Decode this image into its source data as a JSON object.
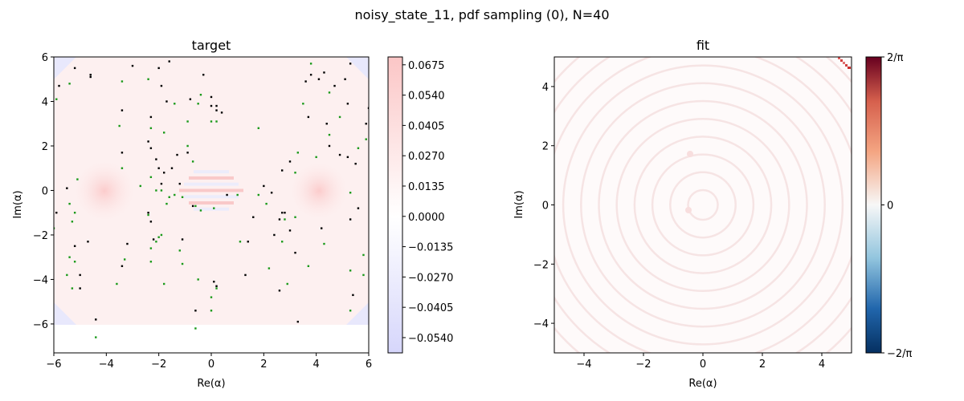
{
  "figure": {
    "suptitle": "noisy_state_11, pdf sampling (0), N=40"
  },
  "chart_data": [
    {
      "type": "heatmap",
      "title": "target",
      "xlabel": "Re(α)",
      "ylabel": "Im(α)",
      "xlim": [
        -6,
        6
      ],
      "ylim": [
        -7.3,
        6
      ],
      "xticks": [
        "−6",
        "−4",
        "−2",
        "0",
        "2",
        "4",
        "6"
      ],
      "yticks": [
        "−6",
        "−4",
        "−2",
        "0",
        "2",
        "4",
        "6"
      ],
      "colorbar": {
        "range": [
          -0.0608,
          0.071
        ],
        "ticks": [
          0.0675,
          0.054,
          0.0405,
          0.027,
          0.0135,
          0.0,
          -0.0135,
          -0.027,
          -0.0405,
          -0.054
        ],
        "tick_labels": [
          "0.0675",
          "0.0540",
          "0.0405",
          "0.0270",
          "0.0135",
          "0.0000",
          "−0.0135",
          "−0.0270",
          "−0.0405",
          "−0.0540"
        ],
        "colors": {
          "low": "#d6d6fb",
          "mid": "#ffffff",
          "high": "#fbc6c6"
        }
      },
      "features": {
        "lobes": [
          {
            "x": -4.2,
            "y": 0.0
          },
          {
            "x": 4.1,
            "y": 0.0
          }
        ],
        "fringe_center": {
          "x": 0.0,
          "y": 0.0
        }
      },
      "sample_points": [
        {
          "name": "black-samples",
          "color": "#000000",
          "points": [
            [
              -5.8,
              4.7
            ],
            [
              -5.2,
              5.5
            ],
            [
              -4.6,
              5.2
            ],
            [
              -4.6,
              5.1
            ],
            [
              -3.0,
              5.6
            ],
            [
              -2.0,
              5.5
            ],
            [
              -1.6,
              5.8
            ],
            [
              -1.9,
              4.7
            ],
            [
              -1.7,
              4.0
            ],
            [
              -0.8,
              4.1
            ],
            [
              -0.3,
              5.2
            ],
            [
              0.0,
              4.2
            ],
            [
              0.0,
              3.8
            ],
            [
              0.2,
              3.8
            ],
            [
              0.2,
              3.6
            ],
            [
              0.4,
              3.5
            ],
            [
              -3.4,
              3.6
            ],
            [
              -2.3,
              3.3
            ],
            [
              -3.4,
              1.7
            ],
            [
              -2.4,
              2.2
            ],
            [
              -2.3,
              1.9
            ],
            [
              -2.1,
              1.4
            ],
            [
              -2.0,
              1.0
            ],
            [
              -1.9,
              0.3
            ],
            [
              -1.8,
              0.8
            ],
            [
              -1.5,
              1.0
            ],
            [
              -1.3,
              1.6
            ],
            [
              -1.2,
              0.3
            ],
            [
              -0.9,
              1.7
            ],
            [
              -5.5,
              0.1
            ],
            [
              -5.9,
              -1.0
            ],
            [
              -3.4,
              -3.4
            ],
            [
              -5.2,
              -2.5
            ],
            [
              -4.7,
              -2.3
            ],
            [
              -5.0,
              -4.4
            ],
            [
              -5.0,
              -3.8
            ],
            [
              -3.2,
              -2.4
            ],
            [
              -2.4,
              -1.0
            ],
            [
              -2.3,
              -1.4
            ],
            [
              -2.2,
              -2.2
            ],
            [
              -1.1,
              -2.2
            ],
            [
              -0.6,
              -5.4
            ],
            [
              0.1,
              -4.1
            ],
            [
              0.2,
              -4.3
            ],
            [
              -0.7,
              -0.7
            ],
            [
              0.6,
              -0.2
            ],
            [
              1.6,
              -1.2
            ],
            [
              1.4,
              -2.3
            ],
            [
              2.0,
              0.2
            ],
            [
              2.3,
              -0.1
            ],
            [
              2.6,
              -1.3
            ],
            [
              2.4,
              -2.0
            ],
            [
              2.7,
              -1.0
            ],
            [
              2.8,
              -1.0
            ],
            [
              3.0,
              -1.8
            ],
            [
              2.6,
              -4.5
            ],
            [
              3.2,
              -2.8
            ],
            [
              3.3,
              -5.9
            ],
            [
              3.0,
              1.3
            ],
            [
              2.7,
              0.9
            ],
            [
              3.7,
              3.3
            ],
            [
              3.6,
              4.9
            ],
            [
              3.8,
              5.2
            ],
            [
              4.1,
              5.0
            ],
            [
              4.3,
              5.3
            ],
            [
              5.1,
              5.0
            ],
            [
              5.2,
              3.9
            ],
            [
              4.7,
              4.7
            ],
            [
              5.3,
              5.7
            ],
            [
              4.4,
              3.0
            ],
            [
              4.5,
              2.0
            ],
            [
              4.9,
              1.6
            ],
            [
              5.2,
              1.5
            ],
            [
              5.5,
              1.2
            ],
            [
              5.9,
              3.0
            ],
            [
              6.0,
              3.7
            ],
            [
              5.6,
              -0.8
            ],
            [
              5.3,
              -1.3
            ],
            [
              5.4,
              -4.7
            ],
            [
              4.2,
              -1.7
            ],
            [
              -4.4,
              -5.8
            ],
            [
              1.3,
              -3.8
            ]
          ]
        },
        {
          "name": "green-samples",
          "color": "#1a9a1a",
          "points": [
            [
              -5.9,
              4.1
            ],
            [
              -5.4,
              4.8
            ],
            [
              -3.4,
              4.9
            ],
            [
              -2.4,
              5.0
            ],
            [
              -1.4,
              3.9
            ],
            [
              -2.3,
              2.8
            ],
            [
              -1.8,
              2.6
            ],
            [
              -0.9,
              3.1
            ],
            [
              0.0,
              3.1
            ],
            [
              0.2,
              3.1
            ],
            [
              -0.4,
              4.3
            ],
            [
              -0.5,
              3.9
            ],
            [
              -3.5,
              2.9
            ],
            [
              -3.4,
              1.0
            ],
            [
              -2.3,
              0.6
            ],
            [
              -2.7,
              0.2
            ],
            [
              -2.4,
              -1.1
            ],
            [
              -2.1,
              0.0
            ],
            [
              -1.6,
              -0.3
            ],
            [
              -1.4,
              -0.2
            ],
            [
              -1.9,
              -2.0
            ],
            [
              -2.1,
              -2.3
            ],
            [
              -2.3,
              -2.6
            ],
            [
              -2.3,
              -3.2
            ],
            [
              -1.9,
              0.0
            ],
            [
              -1.7,
              -0.6
            ],
            [
              -1.8,
              -4.2
            ],
            [
              -1.2,
              -2.7
            ],
            [
              -2.0,
              -2.1
            ],
            [
              -1.1,
              -0.3
            ],
            [
              -0.6,
              -0.7
            ],
            [
              -3.6,
              -4.2
            ],
            [
              -3.3,
              -3.1
            ],
            [
              -5.4,
              -0.6
            ],
            [
              -5.2,
              -1.0
            ],
            [
              -5.3,
              -1.4
            ],
            [
              -5.1,
              0.5
            ],
            [
              -5.2,
              -3.2
            ],
            [
              -5.5,
              -3.8
            ],
            [
              -5.3,
              -4.4
            ],
            [
              -6.0,
              -1.7
            ],
            [
              -5.4,
              -3.0
            ],
            [
              -4.4,
              -6.6
            ],
            [
              -0.6,
              -6.2
            ],
            [
              0.0,
              -5.4
            ],
            [
              0.0,
              -4.8
            ],
            [
              0.2,
              -4.4
            ],
            [
              -1.1,
              -3.3
            ],
            [
              -0.5,
              -4.0
            ],
            [
              1.1,
              -2.3
            ],
            [
              1.0,
              -0.2
            ],
            [
              1.8,
              -0.2
            ],
            [
              2.1,
              -0.6
            ],
            [
              1.8,
              2.8
            ],
            [
              2.7,
              -2.3
            ],
            [
              3.2,
              -1.2
            ],
            [
              3.2,
              0.8
            ],
            [
              3.3,
              1.7
            ],
            [
              4.0,
              1.5
            ],
            [
              4.5,
              2.5
            ],
            [
              4.5,
              4.4
            ],
            [
              3.8,
              5.7
            ],
            [
              4.9,
              3.3
            ],
            [
              5.6,
              1.9
            ],
            [
              5.9,
              2.3
            ],
            [
              5.3,
              -0.1
            ],
            [
              4.3,
              -2.4
            ],
            [
              3.7,
              -3.4
            ],
            [
              2.9,
              -4.2
            ],
            [
              5.3,
              -5.4
            ],
            [
              5.3,
              -3.6
            ],
            [
              5.8,
              -3.8
            ],
            [
              5.8,
              -2.9
            ],
            [
              -0.7,
              1.3
            ],
            [
              -0.4,
              -0.9
            ],
            [
              0.1,
              -0.8
            ],
            [
              2.8,
              -1.3
            ],
            [
              3.5,
              3.9
            ],
            [
              2.2,
              -3.5
            ],
            [
              -0.9,
              2.0
            ]
          ]
        }
      ]
    },
    {
      "type": "heatmap",
      "title": "fit",
      "xlabel": "Re(α)",
      "ylabel": "Im(α)",
      "xlim": [
        -5,
        5
      ],
      "ylim": [
        -5,
        5
      ],
      "xticks": [
        "−4",
        "−2",
        "0",
        "2",
        "4"
      ],
      "yticks": [
        "−4",
        "−2",
        "0",
        "2",
        "4"
      ],
      "colorbar": {
        "range": [
          -0.6366,
          0.6366
        ],
        "ticks": [
          0.6366,
          0,
          -0.6366
        ],
        "tick_labels": [
          "2/π",
          "0",
          "−2/π"
        ],
        "colors": {
          "low": "#053061",
          "mid": "#ffffff",
          "high": "#b2182b"
        }
      },
      "features": {
        "rings_center": {
          "x": 0.0,
          "y": 0.0
        },
        "faint_dots": [
          {
            "x": -0.4,
            "y": 1.7
          },
          {
            "x": -0.5,
            "y": -0.2
          }
        ],
        "corner_spike": {
          "x": 4.8,
          "y": 4.8
        }
      }
    }
  ]
}
